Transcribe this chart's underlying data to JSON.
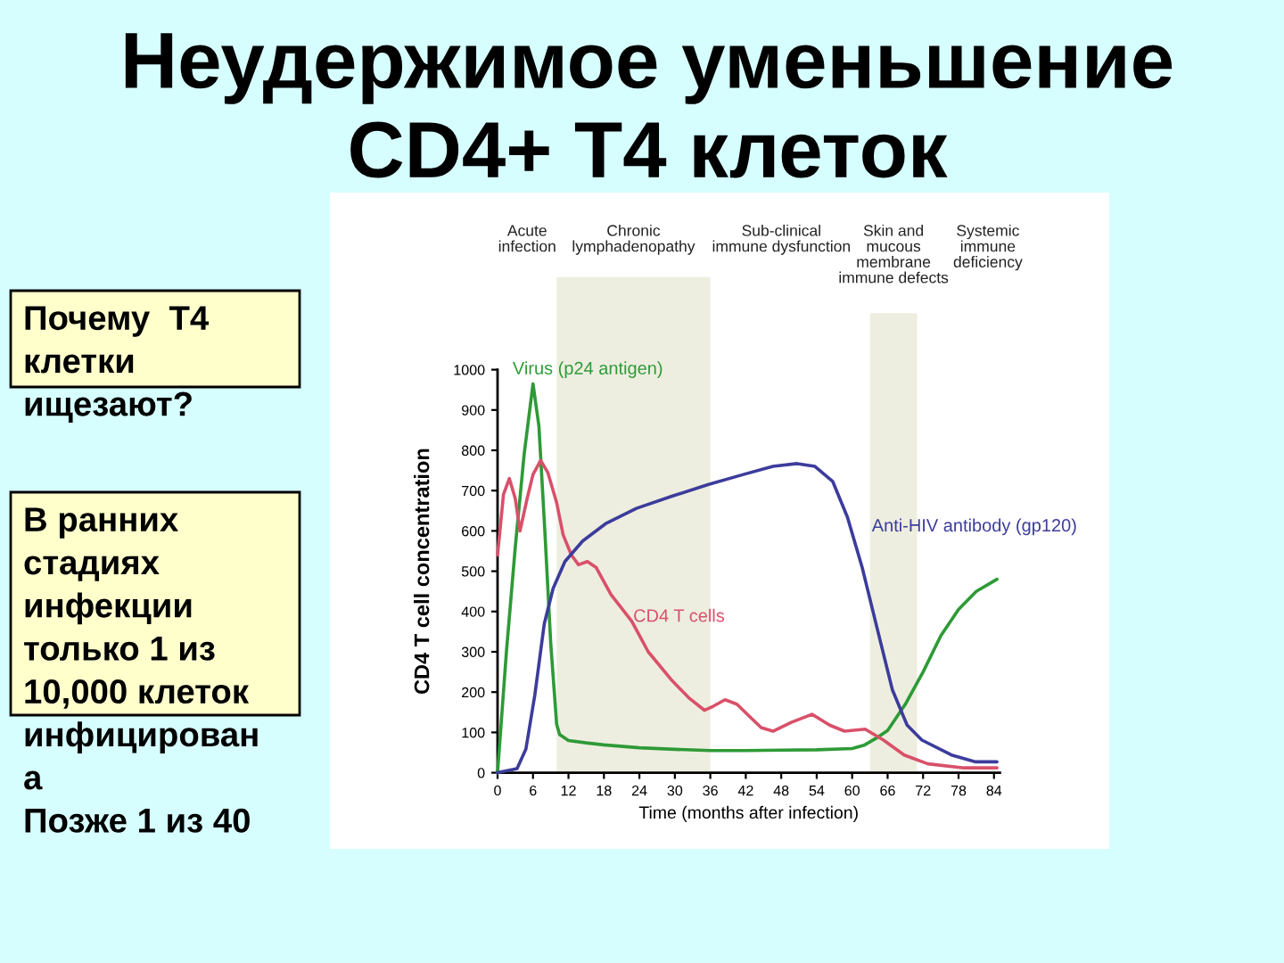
{
  "chart_data": {
    "type": "line",
    "title": "Неудержимое уменьшение\nCD4+ T4 клеток",
    "xlabel": "Time (months after infection)",
    "ylabel": "CD4 T cell concentration",
    "xlim": [
      0,
      85
    ],
    "xticks": [
      0,
      6,
      12,
      18,
      24,
      30,
      36,
      42,
      48,
      54,
      60,
      66,
      72,
      78,
      84
    ],
    "ylim": [
      0,
      1000
    ],
    "yticks": [
      0,
      100,
      200,
      300,
      400,
      500,
      600,
      700,
      800,
      900,
      1000
    ],
    "series": [
      {
        "name": "Virus (p24 antigen)",
        "color": "#2e9a36",
        "x": [
          0,
          1.5,
          3,
          4.5,
          6,
          7,
          8,
          9,
          10,
          10.5,
          12,
          15,
          18,
          24,
          30,
          36,
          42,
          48,
          54,
          60,
          62,
          64,
          66,
          69,
          72,
          75,
          78,
          81,
          84.5
        ],
        "values": [
          0,
          300,
          560,
          790,
          965,
          860,
          600,
          320,
          120,
          95,
          80,
          74,
          69,
          62,
          58,
          55,
          55,
          56,
          57,
          60,
          68,
          85,
          105,
          170,
          250,
          340,
          405,
          450,
          480
        ]
      },
      {
        "name": "CD4 T cells",
        "color": "#d9506a",
        "x": [
          0,
          1,
          2,
          3,
          3.8,
          5,
          6,
          7.3,
          8.5,
          10,
          11.1,
          12.5,
          13.7,
          15.2,
          16.7,
          19.2,
          22.7,
          25.5,
          29.5,
          32.5,
          35,
          36.5,
          38.5,
          40.5,
          42.6,
          44.6,
          46.6,
          49.7,
          53.2,
          56.2,
          58.7,
          62.2,
          65.3,
          68.8,
          72.8,
          78.9,
          84.5
        ],
        "values": [
          540,
          690,
          730,
          680,
          600,
          680,
          740,
          775,
          745,
          670,
          590,
          540,
          516,
          524,
          509,
          442,
          376,
          300,
          229,
          184,
          155,
          165,
          181,
          170,
          140,
          112,
          103,
          125,
          145,
          118,
          103,
          108,
          81,
          44,
          22,
          12,
          12
        ]
      },
      {
        "name": "Anti-HIV antibody (gp120)",
        "color": "#3c3c9c",
        "x": [
          0,
          3.3,
          4.8,
          6.3,
          7.9,
          9.4,
          11.4,
          14.4,
          18.4,
          23.5,
          29.5,
          35.6,
          41.6,
          46.6,
          50.7,
          53.7,
          56.7,
          59.2,
          61.7,
          64.3,
          66.8,
          69.3,
          71.8,
          76.8,
          80.9,
          84.5
        ],
        "values": [
          0,
          10,
          59,
          192,
          369,
          457,
          524,
          575,
          619,
          656,
          686,
          715,
          740,
          760,
          767,
          760,
          723,
          634,
          509,
          354,
          206,
          118,
          81,
          44,
          27,
          27
        ]
      }
    ],
    "bands": [
      {
        "axis": "x",
        "from": 10,
        "to": 36,
        "label": "Chronic\nlymphadenopathy",
        "color": "#eeeee0"
      },
      {
        "axis": "x",
        "from": 63,
        "to": 71,
        "label": "Skin and\nmucous\nmembrane\nimmune defects",
        "color": "#eeeee0"
      }
    ],
    "annotations": [
      "Acute\ninfection",
      "Sub-clinical\nimmune dysfunction",
      "Systemic\nimmune\ndeficiency",
      "Почему  Т4\nклетки\nищезают?",
      "В ранних\nстадиях\nинфекции\nтолько 1 из\n10,000 клеток\nинфицирован\nа\nПозже 1 из 40"
    ]
  }
}
